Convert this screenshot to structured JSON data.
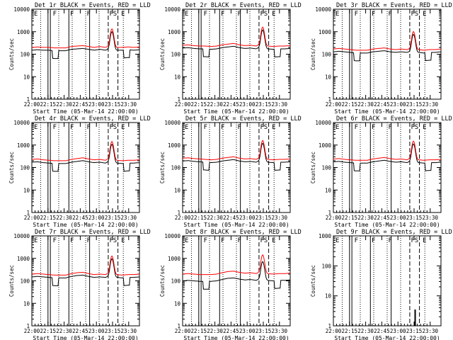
{
  "chart_data": [
    {
      "type": "line",
      "title": "Det 1r BLACK = Events, RED = LLD",
      "xlabel": "Start Time (05-Mar-14 22:00:00)",
      "ylabel": "Counts/sec",
      "yscale": "log",
      "ylim": [
        1,
        10000
      ],
      "xlim": [
        0,
        6000
      ],
      "x_ticks": [
        "22:00",
        "22:15",
        "22:30",
        "22:45",
        "23:00",
        "23:15",
        "23:30"
      ],
      "y_ticks": [
        "1",
        "10",
        "100",
        "1000",
        "10000"
      ],
      "markers": [
        "E",
        "F",
        "F",
        "F",
        "F",
        "S",
        "E"
      ],
      "dip_positions": [
        0.19,
        0.85
      ],
      "has_events": true,
      "has_lld": true,
      "events_scale": 0.75,
      "series": [
        {
          "name": "BLACK = Events",
          "color": "#000000"
        },
        {
          "name": "RED = LLD",
          "color": "#ff0000",
          "values": [
            200,
            210,
            200,
            200,
            190,
            190,
            190,
            220,
            230,
            240,
            220,
            200,
            220,
            200,
            250,
            200,
            200,
            210,
            200,
            210
          ]
        }
      ]
    },
    {
      "type": "line",
      "title": "Det 2r BLACK = Events, RED = LLD",
      "xlabel": "Start Time (05-Mar-14 22:00:00)",
      "ylabel": "Counts/sec",
      "yscale": "log",
      "ylim": [
        1,
        10000
      ],
      "xlim": [
        0,
        6000
      ],
      "x_ticks": [
        "22:00",
        "22:15",
        "22:30",
        "22:45",
        "23:00",
        "23:15",
        "23:30"
      ],
      "y_ticks": [
        "1",
        "10",
        "100",
        "1000",
        "10000"
      ],
      "markers": [
        "E",
        "F",
        "F",
        "F",
        "F",
        "S",
        "E"
      ],
      "dip_positions": [
        0.19,
        0.85
      ],
      "has_events": true,
      "has_lld": true,
      "events_scale": 0.75,
      "series": [
        {
          "name": "BLACK = Events",
          "color": "#000000"
        },
        {
          "name": "RED = LLD",
          "color": "#ff0000",
          "values": [
            250,
            260,
            240,
            230,
            230,
            220,
            230,
            260,
            280,
            300,
            260,
            240,
            250,
            230,
            300,
            230,
            220,
            230,
            230,
            240
          ]
        }
      ]
    },
    {
      "type": "line",
      "title": "Det 3r BLACK = Events, RED = LLD",
      "xlabel": "Start Time (05-Mar-14 22:00:00)",
      "ylabel": "Counts/sec",
      "yscale": "log",
      "ylim": [
        1,
        10000
      ],
      "xlim": [
        0,
        6000
      ],
      "x_ticks": [
        "22:00",
        "22:15",
        "22:30",
        "22:45",
        "23:00",
        "23:15",
        "23:30"
      ],
      "y_ticks": [
        "1",
        "10",
        "100",
        "1000",
        "10000"
      ],
      "markers": [
        "E",
        "F",
        "F",
        "F",
        "F",
        "S",
        "E"
      ],
      "dip_positions": [
        0.19,
        0.85
      ],
      "has_events": true,
      "has_lld": true,
      "events_scale": 0.75,
      "series": [
        {
          "name": "BLACK = Events",
          "color": "#000000"
        },
        {
          "name": "RED = LLD",
          "color": "#ff0000",
          "values": [
            170,
            180,
            170,
            160,
            150,
            150,
            150,
            170,
            180,
            190,
            170,
            160,
            170,
            160,
            190,
            160,
            150,
            160,
            160,
            170
          ]
        }
      ]
    },
    {
      "type": "line",
      "title": "Det 4r BLACK = Events, RED = LLD",
      "xlabel": "Start Time (05-Mar-14 22:00:00)",
      "ylabel": "Counts/sec",
      "yscale": "log",
      "ylim": [
        1,
        10000
      ],
      "xlim": [
        0,
        6000
      ],
      "x_ticks": [
        "22:00",
        "22:15",
        "22:30",
        "22:45",
        "23:00",
        "23:15",
        "23:30"
      ],
      "y_ticks": [
        "1",
        "10",
        "100",
        "1000",
        "10000"
      ],
      "markers": [
        "E",
        "F",
        "F",
        "F",
        "F",
        "S",
        "E"
      ],
      "dip_positions": [
        0.19,
        0.85
      ],
      "has_events": true,
      "has_lld": true,
      "events_scale": 0.75,
      "series": [
        {
          "name": "BLACK = Events",
          "color": "#000000"
        },
        {
          "name": "RED = LLD",
          "color": "#ff0000",
          "values": [
            230,
            240,
            220,
            210,
            200,
            200,
            200,
            230,
            250,
            270,
            240,
            220,
            230,
            210,
            270,
            210,
            200,
            210,
            210,
            220
          ]
        }
      ]
    },
    {
      "type": "line",
      "title": "Det 5r BLACK = Events, RED = LLD",
      "xlabel": "Start Time (05-Mar-14 22:00:00)",
      "ylabel": "Counts/sec",
      "yscale": "log",
      "ylim": [
        1,
        10000
      ],
      "xlim": [
        0,
        6000
      ],
      "x_ticks": [
        "22:00",
        "22:15",
        "22:30",
        "22:45",
        "23:00",
        "23:15",
        "23:30"
      ],
      "y_ticks": [
        "1",
        "10",
        "100",
        "1000",
        "10000"
      ],
      "markers": [
        "E",
        "F",
        "F",
        "F",
        "F",
        "S",
        "E"
      ],
      "dip_positions": [
        0.19,
        0.85
      ],
      "has_events": true,
      "has_lld": true,
      "events_scale": 0.75,
      "series": [
        {
          "name": "BLACK = Events",
          "color": "#000000"
        },
        {
          "name": "RED = LLD",
          "color": "#ff0000",
          "values": [
            260,
            270,
            250,
            240,
            230,
            220,
            230,
            260,
            280,
            300,
            260,
            240,
            250,
            230,
            300,
            230,
            220,
            230,
            230,
            240
          ]
        }
      ]
    },
    {
      "type": "line",
      "title": "Det 6r BLACK = Events, RED = LLD",
      "xlabel": "Start Time (05-Mar-14 22:00:00)",
      "ylabel": "Counts/sec",
      "yscale": "log",
      "ylim": [
        1,
        10000
      ],
      "xlim": [
        0,
        6000
      ],
      "x_ticks": [
        "22:00",
        "22:15",
        "22:30",
        "22:45",
        "23:00",
        "23:15",
        "23:30"
      ],
      "y_ticks": [
        "1",
        "10",
        "100",
        "1000",
        "10000"
      ],
      "markers": [
        "E",
        "F",
        "F",
        "F",
        "F",
        "S",
        "E"
      ],
      "dip_positions": [
        0.19,
        0.85
      ],
      "has_events": true,
      "has_lld": true,
      "events_scale": 0.75,
      "series": [
        {
          "name": "BLACK = Events",
          "color": "#000000"
        },
        {
          "name": "RED = LLD",
          "color": "#ff0000",
          "values": [
            240,
            250,
            230,
            220,
            210,
            210,
            210,
            240,
            260,
            280,
            250,
            230,
            240,
            220,
            280,
            220,
            210,
            220,
            220,
            230
          ]
        }
      ]
    },
    {
      "type": "line",
      "title": "Det 7r BLACK = Events, RED = LLD",
      "xlabel": "Start Time (05-Mar-14 22:00:00)",
      "ylabel": "Counts/sec",
      "yscale": "log",
      "ylim": [
        1,
        10000
      ],
      "xlim": [
        0,
        6000
      ],
      "x_ticks": [
        "22:00",
        "22:15",
        "22:30",
        "22:45",
        "23:00",
        "23:15",
        "23:30"
      ],
      "y_ticks": [
        "1",
        "10",
        "100",
        "1000",
        "10000"
      ],
      "markers": [
        "E",
        "F",
        "F",
        "F",
        "F",
        "S",
        "E"
      ],
      "dip_positions": [
        0.19,
        0.85
      ],
      "has_events": true,
      "has_lld": true,
      "events_scale": 0.75,
      "series": [
        {
          "name": "BLACK = Events",
          "color": "#000000"
        },
        {
          "name": "RED = LLD",
          "color": "#ff0000",
          "values": [
            200,
            210,
            200,
            190,
            180,
            180,
            180,
            210,
            230,
            240,
            210,
            190,
            200,
            190,
            240,
            190,
            180,
            190,
            190,
            200
          ]
        }
      ]
    },
    {
      "type": "line",
      "title": "Det 8r BLACK = Events, RED = LLD",
      "xlabel": "Start Time (05-Mar-14 22:00:00)",
      "ylabel": "Counts/sec",
      "yscale": "log",
      "ylim": [
        1,
        10000
      ],
      "xlim": [
        0,
        6000
      ],
      "x_ticks": [
        "22:00",
        "22:15",
        "22:30",
        "22:45",
        "23:00",
        "23:15",
        "23:30"
      ],
      "y_ticks": [
        "1",
        "10",
        "100",
        "1000",
        "10000"
      ],
      "markers": [
        "E",
        "F",
        "F",
        "F",
        "F",
        "S",
        "E"
      ],
      "dip_positions": [
        0.19,
        0.85
      ],
      "has_events": true,
      "has_lld": true,
      "events_scale": 0.5,
      "series": [
        {
          "name": "BLACK = Events",
          "color": "#000000"
        },
        {
          "name": "RED = LLD",
          "color": "#ff0000",
          "values": [
            200,
            210,
            200,
            190,
            190,
            190,
            200,
            230,
            260,
            270,
            240,
            220,
            230,
            210,
            270,
            210,
            200,
            210,
            210,
            220
          ]
        }
      ]
    },
    {
      "type": "line",
      "title": "Det 9r BLACK = Events, RED = LLD",
      "xlabel": "Start Time (05-Mar-14 22:00:00)",
      "ylabel": "Counts/sec",
      "yscale": "log",
      "ylim": [
        1,
        1000
      ],
      "xlim": [
        0,
        6000
      ],
      "x_ticks": [
        "22:00",
        "22:15",
        "22:30",
        "22:45",
        "23:00",
        "23:15",
        "23:30"
      ],
      "y_ticks": [
        "1",
        "10",
        "100",
        "1000"
      ],
      "markers": [
        "E",
        "F",
        "F",
        "F",
        "F",
        "S",
        "E"
      ],
      "dip_positions": [],
      "has_events": false,
      "has_lld": false,
      "events_scale": 0.75,
      "series": [],
      "spike": {
        "x": 0.76,
        "y0": 1,
        "y1": 3.5
      }
    }
  ]
}
